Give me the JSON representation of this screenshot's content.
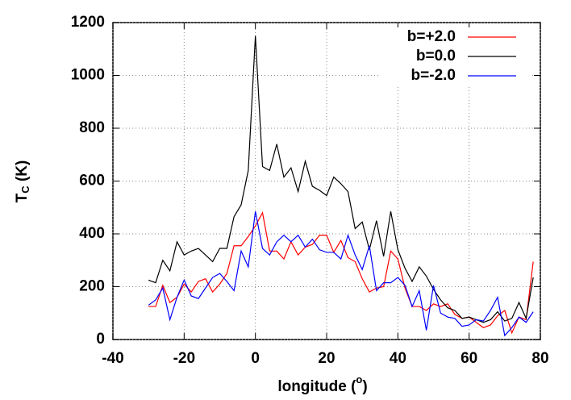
{
  "chart_data": {
    "type": "line",
    "x_label": {
      "text": "longitude (",
      "sup": "o",
      "end": ")"
    },
    "y_label": {
      "text": "T",
      "sub": "C",
      "end": " (K)"
    },
    "x": [
      -30,
      -28,
      -26,
      -24,
      -22,
      -20,
      -18,
      -16,
      -14,
      -12,
      -10,
      -8,
      -6,
      -4,
      -2,
      0,
      2,
      4,
      6,
      8,
      10,
      12,
      14,
      16,
      18,
      20,
      22,
      24,
      26,
      28,
      30,
      32,
      34,
      36,
      38,
      40,
      42,
      44,
      46,
      48,
      50,
      52,
      54,
      56,
      58,
      60,
      62,
      64,
      66,
      68,
      70,
      72,
      74,
      76,
      78
    ],
    "series": [
      {
        "name": "b=+2.0",
        "color": "#ff0000",
        "values": [
          125,
          125,
          205,
          140,
          160,
          210,
          180,
          220,
          230,
          180,
          210,
          250,
          355,
          355,
          390,
          430,
          480,
          335,
          335,
          305,
          370,
          320,
          350,
          360,
          395,
          395,
          330,
          375,
          310,
          295,
          230,
          180,
          195,
          200,
          335,
          305,
          195,
          125,
          125,
          110,
          135,
          125,
          135,
          95,
          80,
          85,
          65,
          45,
          55,
          90,
          110,
          25,
          85,
          75,
          295
        ]
      },
      {
        "name": "b=0.0",
        "color": "#000000",
        "values": [
          225,
          215,
          300,
          260,
          370,
          320,
          335,
          345,
          320,
          295,
          345,
          345,
          465,
          510,
          640,
          1150,
          655,
          640,
          740,
          615,
          650,
          560,
          675,
          580,
          565,
          545,
          615,
          590,
          560,
          420,
          445,
          340,
          450,
          315,
          485,
          340,
          270,
          220,
          275,
          240,
          190,
          150,
          120,
          110,
          80,
          85,
          75,
          65,
          75,
          105,
          70,
          80,
          140,
          80,
          235
        ]
      },
      {
        "name": "b=-2.0",
        "color": "#0000ff",
        "values": [
          130,
          150,
          195,
          75,
          160,
          225,
          165,
          155,
          195,
          235,
          250,
          220,
          185,
          335,
          275,
          485,
          345,
          320,
          370,
          395,
          370,
          395,
          350,
          380,
          340,
          330,
          330,
          305,
          395,
          320,
          265,
          355,
          185,
          215,
          215,
          235,
          205,
          125,
          185,
          35,
          205,
          100,
          85,
          80,
          50,
          55,
          75,
          70,
          110,
          160,
          15,
          45,
          85,
          65,
          105
        ]
      }
    ],
    "xlim": [
      -40,
      80
    ],
    "xticks": [
      -40,
      -20,
      0,
      20,
      40,
      60,
      80
    ],
    "ylim": [
      0,
      1200
    ],
    "yticks": [
      0,
      200,
      400,
      600,
      800,
      1000,
      1200
    ],
    "grid": true,
    "legend": "top-right"
  }
}
